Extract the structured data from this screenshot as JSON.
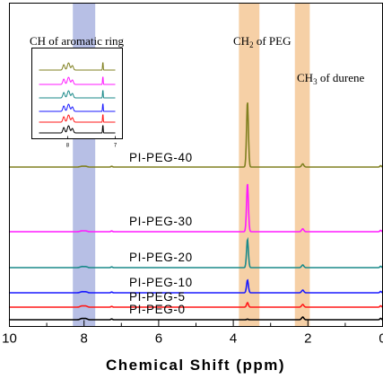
{
  "chart_data": {
    "type": "line",
    "xlabel": "Chemical Shift (ppm)",
    "xlim": [
      10,
      0
    ],
    "x_ticks": [
      "10",
      "8",
      "6",
      "4",
      "2",
      "0"
    ],
    "highlight_bands": [
      {
        "label": "CH of aromatic ring",
        "range": [
          8.3,
          7.7
        ],
        "color": "#aab4e0"
      },
      {
        "label_main": "CH",
        "label_sub": "2",
        "label_rest": " of PEG",
        "range": [
          3.85,
          3.3
        ],
        "color": "#f5c896"
      },
      {
        "label_main": "CH",
        "label_sub": "3",
        "label_rest": " of durene",
        "range": [
          2.35,
          1.95
        ],
        "color": "#f5c896"
      }
    ],
    "series": [
      {
        "name": "PI-PEG-0",
        "color": "#000000",
        "peg_peak": 0.2,
        "durene_peak": 3.0,
        "aromatic_peak": 1.4
      },
      {
        "name": "PI-PEG-5",
        "color": "#ff1a1a",
        "peg_peak": 1.6,
        "durene_peak": 3.0,
        "aromatic_peak": 1.4
      },
      {
        "name": "PI-PEG-10",
        "color": "#1a1aff",
        "peg_peak": 4.5,
        "durene_peak": 3.0,
        "aromatic_peak": 1.2
      },
      {
        "name": "PI-PEG-20",
        "color": "#1a8a8a",
        "peg_peak": 10.0,
        "durene_peak": 3.0,
        "aromatic_peak": 1.2
      },
      {
        "name": "PI-PEG-30",
        "color": "#ff1aff",
        "peg_peak": 17.0,
        "durene_peak": 3.2,
        "aromatic_peak": 1.0
      },
      {
        "name": "PI-PEG-40",
        "color": "#808020",
        "peg_peak": 23.0,
        "durene_peak": 3.5,
        "aromatic_peak": 0.9
      }
    ],
    "inset": {
      "x_ticks": [
        "8",
        "7"
      ],
      "xlim": [
        8.6,
        7.0
      ]
    }
  }
}
